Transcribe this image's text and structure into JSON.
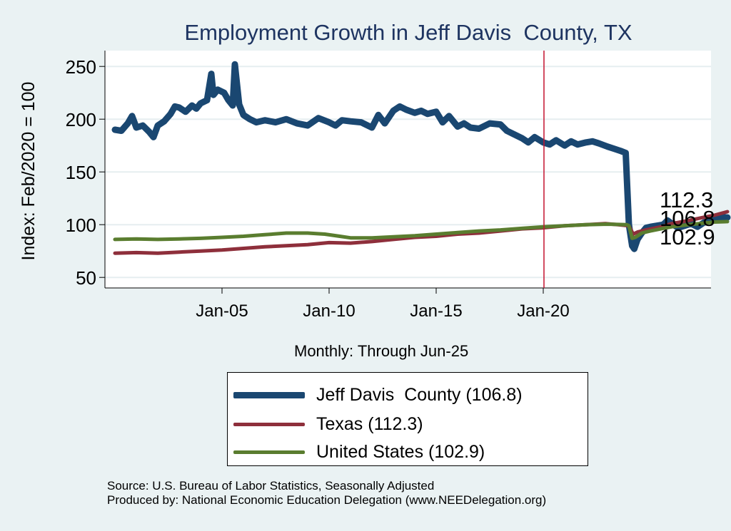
{
  "chart_data": {
    "type": "line",
    "title": "Employment Growth in Jeff Davis  County, TX",
    "ylabel": "Index: Feb/2020 = 100",
    "xlabel": "Monthly: Through Jun-25",
    "ylim": [
      40,
      265
    ],
    "xlim": [
      2000.0,
      2028.0
    ],
    "yticks": [
      50,
      100,
      150,
      200,
      250
    ],
    "xticks": [
      {
        "x": 2005,
        "label": "Jan-05"
      },
      {
        "x": 2010,
        "label": "Jan-10"
      },
      {
        "x": 2015,
        "label": "Jan-15"
      },
      {
        "x": 2020,
        "label": "Jan-20"
      }
    ],
    "vline": 2020.08,
    "grid": true,
    "series": [
      {
        "name": "Jeff Davis  County",
        "legend": "Jeff Davis  County (106.8)",
        "color": "#1a4771",
        "width": 9,
        "end_label": "106.8",
        "points": [
          [
            2000.0,
            190
          ],
          [
            2000.3,
            189
          ],
          [
            2000.6,
            196
          ],
          [
            2000.8,
            203
          ],
          [
            2001.0,
            192
          ],
          [
            2001.3,
            194
          ],
          [
            2001.6,
            188
          ],
          [
            2001.8,
            183
          ],
          [
            2002.0,
            194
          ],
          [
            2002.3,
            198
          ],
          [
            2002.6,
            205
          ],
          [
            2002.8,
            212
          ],
          [
            2003.0,
            211
          ],
          [
            2003.3,
            207
          ],
          [
            2003.6,
            213
          ],
          [
            2003.8,
            210
          ],
          [
            2004.0,
            215
          ],
          [
            2004.3,
            218
          ],
          [
            2004.5,
            243
          ],
          [
            2004.6,
            223
          ],
          [
            2004.8,
            228
          ],
          [
            2005.1,
            225
          ],
          [
            2005.3,
            218
          ],
          [
            2005.5,
            213
          ],
          [
            2005.6,
            252
          ],
          [
            2005.8,
            214
          ],
          [
            2006.0,
            204
          ],
          [
            2006.3,
            200
          ],
          [
            2006.6,
            197
          ],
          [
            2007.0,
            199
          ],
          [
            2007.5,
            197
          ],
          [
            2008.0,
            200
          ],
          [
            2008.5,
            196
          ],
          [
            2009.0,
            194
          ],
          [
            2009.5,
            201
          ],
          [
            2010.0,
            197
          ],
          [
            2010.3,
            194
          ],
          [
            2010.6,
            199
          ],
          [
            2011.0,
            198
          ],
          [
            2011.5,
            197
          ],
          [
            2012.0,
            192
          ],
          [
            2012.3,
            204
          ],
          [
            2012.6,
            196
          ],
          [
            2013.0,
            208
          ],
          [
            2013.3,
            212
          ],
          [
            2013.6,
            209
          ],
          [
            2014.0,
            206
          ],
          [
            2014.3,
            208
          ],
          [
            2014.6,
            205
          ],
          [
            2015.0,
            207
          ],
          [
            2015.3,
            197
          ],
          [
            2015.6,
            203
          ],
          [
            2016.0,
            193
          ],
          [
            2016.3,
            196
          ],
          [
            2016.6,
            192
          ],
          [
            2017.0,
            191
          ],
          [
            2017.5,
            196
          ],
          [
            2018.0,
            195
          ],
          [
            2018.3,
            189
          ],
          [
            2018.6,
            186
          ],
          [
            2019.0,
            182
          ],
          [
            2019.3,
            178
          ],
          [
            2019.6,
            183
          ],
          [
            2020.0,
            178
          ],
          [
            2020.3,
            176
          ],
          [
            2020.6,
            180
          ],
          [
            2021.0,
            175
          ],
          [
            2021.3,
            179
          ],
          [
            2021.6,
            176
          ],
          [
            2022.0,
            178
          ],
          [
            2022.3,
            179
          ],
          [
            2022.6,
            177
          ],
          [
            2023.0,
            174
          ],
          [
            2023.3,
            172
          ],
          [
            2023.6,
            170
          ],
          [
            2023.85,
            168
          ],
          [
            2024.0,
            100
          ],
          [
            2024.15,
            80
          ],
          [
            2024.25,
            77
          ],
          [
            2024.4,
            86
          ],
          [
            2024.6,
            92
          ],
          [
            2024.8,
            97
          ],
          [
            2025.0,
            98
          ],
          [
            2025.3,
            99
          ],
          [
            2025.6,
            100
          ],
          [
            2025.8,
            104
          ],
          [
            2026.0,
            101
          ],
          [
            2026.3,
            97
          ],
          [
            2026.6,
            99
          ],
          [
            2026.9,
            101
          ],
          [
            2027.2,
            98
          ],
          [
            2027.5,
            102
          ],
          [
            2027.8,
            104
          ],
          [
            2028.1,
            106
          ],
          [
            2028.4,
            107
          ],
          [
            2028.6,
            106.8
          ]
        ]
      },
      {
        "name": "Texas",
        "legend": "Texas (112.3)",
        "color": "#8e2f3b",
        "width": 5,
        "end_label": "112.3",
        "points": [
          [
            2000.0,
            73
          ],
          [
            2001.0,
            73.5
          ],
          [
            2002.0,
            73
          ],
          [
            2003.0,
            74
          ],
          [
            2004.0,
            75
          ],
          [
            2005.0,
            76
          ],
          [
            2006.0,
            77.5
          ],
          [
            2007.0,
            79
          ],
          [
            2008.0,
            80
          ],
          [
            2009.0,
            81
          ],
          [
            2010.0,
            83
          ],
          [
            2011.0,
            82.5
          ],
          [
            2012.0,
            84
          ],
          [
            2013.0,
            86
          ],
          [
            2014.0,
            88
          ],
          [
            2015.0,
            89
          ],
          [
            2016.0,
            91
          ],
          [
            2017.0,
            92
          ],
          [
            2018.0,
            94
          ],
          [
            2019.0,
            96
          ],
          [
            2020.0,
            97
          ],
          [
            2021.0,
            99
          ],
          [
            2022.0,
            100
          ],
          [
            2022.9,
            101
          ],
          [
            2023.5,
            100
          ],
          [
            2024.0,
            99
          ],
          [
            2024.2,
            91
          ],
          [
            2024.4,
            93
          ],
          [
            2024.8,
            95
          ],
          [
            2025.5,
            98
          ],
          [
            2026.0,
            101
          ],
          [
            2026.8,
            104
          ],
          [
            2027.5,
            107
          ],
          [
            2028.0,
            109
          ],
          [
            2028.6,
            112.3
          ]
        ]
      },
      {
        "name": "United States",
        "legend": "United States (102.9)",
        "color": "#5a7d2f",
        "width": 5,
        "end_label": "102.9",
        "points": [
          [
            2000.0,
            86
          ],
          [
            2001.0,
            86.5
          ],
          [
            2002.0,
            86
          ],
          [
            2003.0,
            86.5
          ],
          [
            2004.0,
            87
          ],
          [
            2005.0,
            88
          ],
          [
            2006.0,
            89
          ],
          [
            2007.0,
            90.5
          ],
          [
            2008.0,
            92
          ],
          [
            2009.0,
            92
          ],
          [
            2009.8,
            91
          ],
          [
            2010.5,
            89
          ],
          [
            2011.0,
            87.5
          ],
          [
            2012.0,
            87.5
          ],
          [
            2013.0,
            88.5
          ],
          [
            2014.0,
            89.5
          ],
          [
            2015.0,
            91
          ],
          [
            2016.0,
            92.5
          ],
          [
            2017.0,
            94
          ],
          [
            2018.0,
            95
          ],
          [
            2019.0,
            96.5
          ],
          [
            2020.0,
            98
          ],
          [
            2021.0,
            99
          ],
          [
            2022.0,
            100
          ],
          [
            2023.0,
            100.5
          ],
          [
            2023.9,
            100
          ],
          [
            2024.0,
            99
          ],
          [
            2024.15,
            87
          ],
          [
            2024.3,
            88
          ],
          [
            2024.6,
            92
          ],
          [
            2025.0,
            94
          ],
          [
            2025.5,
            96
          ],
          [
            2026.0,
            98
          ],
          [
            2026.8,
            100
          ],
          [
            2027.5,
            101.5
          ],
          [
            2028.0,
            102.5
          ],
          [
            2028.6,
            102.9
          ]
        ]
      }
    ]
  },
  "footer": {
    "source": "Source: U.S. Bureau of Labor Statistics, Seasonally Adjusted",
    "produced": "Produced by: National Economic Education Delegation (www.NEEDelegation.org)"
  }
}
